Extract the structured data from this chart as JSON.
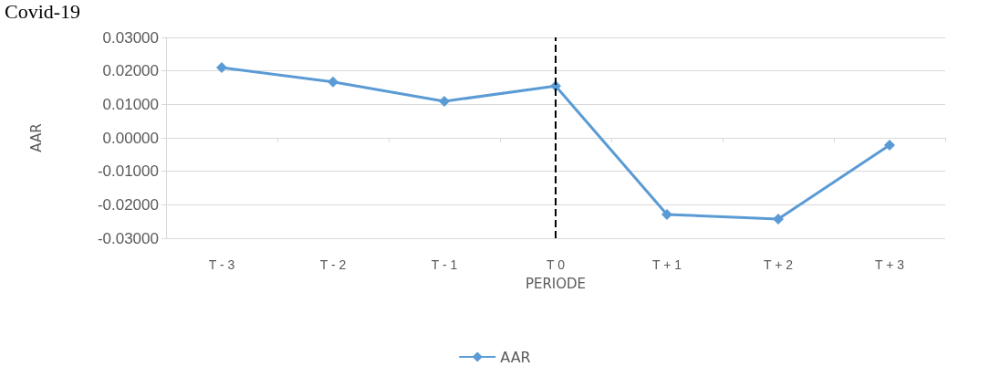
{
  "chart_data": {
    "type": "line",
    "title": "Covid-19",
    "xlabel": "PERIODE",
    "ylabel": "AAR",
    "categories": [
      "T - 3",
      "T - 2",
      "T - 1",
      "T 0",
      "T + 1",
      "T + 2",
      "T + 3"
    ],
    "series": [
      {
        "name": "AAR",
        "color": "#5b9bd5",
        "values": [
          0.021,
          0.0167,
          0.0109,
          0.0155,
          -0.0229,
          -0.0243,
          -0.0022
        ]
      }
    ],
    "ylim": [
      -0.03,
      0.03
    ],
    "yticks": [
      {
        "value": -0.03,
        "label": "-0.03000"
      },
      {
        "value": -0.02,
        "label": "-0.02000"
      },
      {
        "value": -0.01,
        "label": "-0.01000"
      },
      {
        "value": 0,
        "label": "0.00000"
      },
      {
        "value": 0.01,
        "label": "0.01000"
      },
      {
        "value": 0.02,
        "label": "0.02000"
      },
      {
        "value": 0.03,
        "label": "0.03000"
      }
    ],
    "ref_lines": [
      {
        "axis": "x",
        "value": "T 0",
        "color": "#000000",
        "line_style": "dashed"
      }
    ],
    "grid": "y",
    "legend": "bottom",
    "marker": "diamond",
    "line_style": "solid"
  }
}
